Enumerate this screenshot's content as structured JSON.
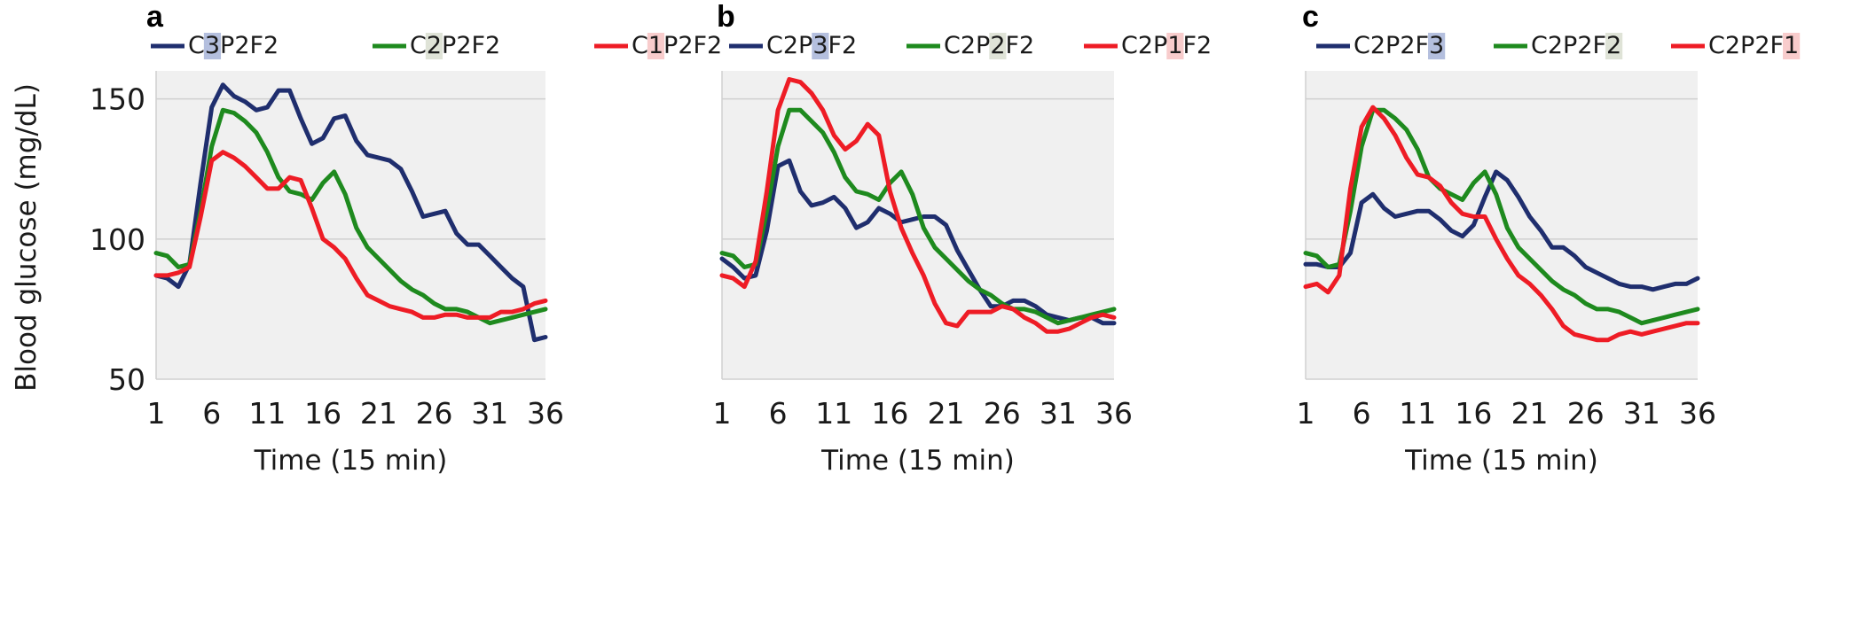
{
  "ylabel": "Blood glucose (mg/dL)",
  "colors": {
    "blue": "#1f2e6e",
    "green": "#1e8a1e",
    "red": "#ee1c25"
  },
  "chart_data": [
    {
      "type": "line",
      "panel_label": "a",
      "title": "",
      "xlabel": "Time (15 min)",
      "ylabel": "Blood glucose (mg/dL)",
      "xlim": [
        1,
        36
      ],
      "ylim": [
        50,
        160
      ],
      "x_ticks": [
        1,
        6,
        11,
        16,
        21,
        26,
        31,
        36
      ],
      "y_ticks": [
        50,
        100,
        150
      ],
      "grid": true,
      "legend": "top",
      "series": [
        {
          "name": "C3P2F2",
          "parts": [
            "C",
            "3",
            "P2F2"
          ],
          "highlight_index": 1,
          "highlight_color": "#b4bfde",
          "color": "#1f2e6e",
          "values": [
            87,
            86,
            83,
            91,
            120,
            147,
            155,
            151,
            149,
            146,
            147,
            153,
            153,
            143,
            134,
            136,
            143,
            144,
            135,
            130,
            129,
            128,
            125,
            117,
            108,
            109,
            110,
            102,
            98,
            98,
            94,
            90,
            86,
            83,
            64,
            65
          ]
        },
        {
          "name": "C2P2F2",
          "parts": [
            "C",
            "2",
            "P2F2"
          ],
          "highlight_index": 1,
          "highlight_color": "#dfe3d7",
          "color": "#1e8a1e",
          "values": [
            95,
            94,
            90,
            91,
            110,
            133,
            146,
            145,
            142,
            138,
            131,
            122,
            117,
            116,
            114,
            120,
            124,
            116,
            104,
            97,
            93,
            89,
            85,
            82,
            80,
            77,
            75,
            75,
            74,
            72,
            70,
            71,
            72,
            73,
            74,
            75
          ]
        },
        {
          "name": "C1P2F2",
          "parts": [
            "C",
            "1",
            "P2F2"
          ],
          "highlight_index": 1,
          "highlight_color": "#f8cccc",
          "color": "#ee1c25",
          "values": [
            87,
            87,
            88,
            90,
            108,
            128,
            131,
            129,
            126,
            122,
            118,
            118,
            122,
            121,
            111,
            100,
            97,
            93,
            86,
            80,
            78,
            76,
            75,
            74,
            72,
            72,
            73,
            73,
            72,
            72,
            72,
            74,
            74,
            75,
            77,
            78
          ]
        }
      ]
    },
    {
      "type": "line",
      "panel_label": "b",
      "title": "",
      "xlabel": "Time (15 min)",
      "ylabel": "",
      "xlim": [
        1,
        36
      ],
      "ylim": [
        50,
        160
      ],
      "x_ticks": [
        1,
        6,
        11,
        16,
        21,
        26,
        31,
        36
      ],
      "y_ticks": [
        50,
        100,
        150
      ],
      "grid": true,
      "legend": "top",
      "series": [
        {
          "name": "C2P3F2",
          "parts": [
            "C2P",
            "3",
            "F2"
          ],
          "highlight_index": 1,
          "highlight_color": "#b4bfde",
          "color": "#1f2e6e",
          "values": [
            93,
            90,
            86,
            87,
            103,
            126,
            128,
            117,
            112,
            113,
            115,
            111,
            104,
            106,
            111,
            109,
            106,
            107,
            108,
            108,
            105,
            96,
            89,
            82,
            76,
            76,
            78,
            78,
            76,
            73,
            72,
            71,
            72,
            72,
            70,
            70
          ]
        },
        {
          "name": "C2P2F2",
          "parts": [
            "C2P",
            "2",
            "F2"
          ],
          "highlight_index": 1,
          "highlight_color": "#dfe3d7",
          "color": "#1e8a1e",
          "values": [
            95,
            94,
            90,
            91,
            110,
            133,
            146,
            146,
            142,
            138,
            131,
            122,
            117,
            116,
            114,
            120,
            124,
            116,
            104,
            97,
            93,
            89,
            85,
            82,
            80,
            77,
            75,
            75,
            74,
            72,
            70,
            71,
            72,
            73,
            74,
            75
          ]
        },
        {
          "name": "C2P1F2",
          "parts": [
            "C2P",
            "1",
            "F2"
          ],
          "highlight_index": 1,
          "highlight_color": "#f8cccc",
          "color": "#ee1c25",
          "values": [
            87,
            86,
            83,
            92,
            117,
            146,
            157,
            156,
            152,
            146,
            137,
            132,
            135,
            141,
            137,
            117,
            104,
            95,
            87,
            77,
            70,
            69,
            74,
            74,
            74,
            76,
            75,
            72,
            70,
            67,
            67,
            68,
            70,
            72,
            73,
            72
          ]
        }
      ]
    },
    {
      "type": "line",
      "panel_label": "c",
      "title": "",
      "xlabel": "Time (15 min)",
      "ylabel": "",
      "xlim": [
        1,
        36
      ],
      "ylim": [
        50,
        160
      ],
      "x_ticks": [
        1,
        6,
        11,
        16,
        21,
        26,
        31,
        36
      ],
      "y_ticks": [
        50,
        100,
        150
      ],
      "grid": true,
      "legend": "top",
      "series": [
        {
          "name": "C2P2F3",
          "parts": [
            "C2P2F",
            "3",
            ""
          ],
          "highlight_index": 1,
          "highlight_color": "#b4bfde",
          "color": "#1f2e6e",
          "values": [
            91,
            91,
            90,
            90,
            95,
            113,
            116,
            111,
            108,
            109,
            110,
            110,
            107,
            103,
            101,
            105,
            115,
            124,
            121,
            115,
            108,
            103,
            97,
            97,
            94,
            90,
            88,
            86,
            84,
            83,
            83,
            82,
            83,
            84,
            84,
            86
          ]
        },
        {
          "name": "C2P2F2",
          "parts": [
            "C2P2F",
            "2",
            ""
          ],
          "highlight_index": 1,
          "highlight_color": "#dfe3d7",
          "color": "#1e8a1e",
          "values": [
            95,
            94,
            90,
            91,
            110,
            133,
            146,
            146,
            143,
            139,
            132,
            122,
            118,
            116,
            114,
            120,
            124,
            116,
            104,
            97,
            93,
            89,
            85,
            82,
            80,
            77,
            75,
            75,
            74,
            72,
            70,
            71,
            72,
            73,
            74,
            75
          ]
        },
        {
          "name": "C2P2F1",
          "parts": [
            "C2P2F",
            "1",
            ""
          ],
          "highlight_index": 1,
          "highlight_color": "#f8cccc",
          "color": "#ee1c25",
          "values": [
            83,
            84,
            81,
            87,
            118,
            140,
            147,
            143,
            137,
            129,
            123,
            122,
            119,
            113,
            109,
            108,
            108,
            100,
            93,
            87,
            84,
            80,
            75,
            69,
            66,
            65,
            64,
            64,
            66,
            67,
            66,
            67,
            68,
            69,
            70,
            70
          ]
        }
      ]
    }
  ]
}
